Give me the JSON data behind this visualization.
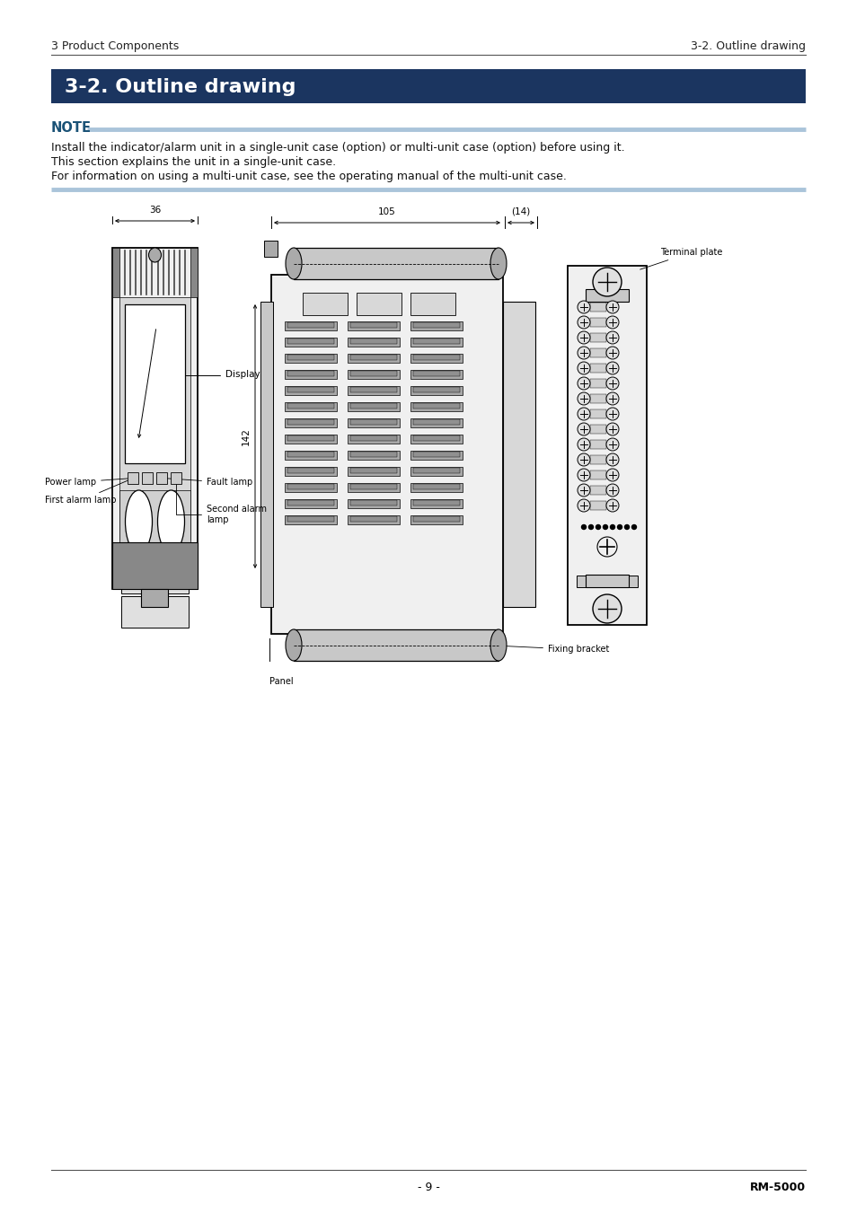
{
  "page_bg": "#ffffff",
  "header_line_color": "#555555",
  "header_left": "3 Product Components",
  "header_right": "3-2. Outline drawing",
  "header_fontsize": 9,
  "section_bg": "#1b3560",
  "section_title": "3-2. Outline drawing",
  "section_title_color": "#ffffff",
  "section_title_fontsize": 16,
  "note_label": "NOTE",
  "note_label_color": "#1a5276",
  "note_bar_color": "#aac4da",
  "note_text_lines": [
    "Install the indicator/alarm unit in a single-unit case (option) or multi-unit case (option) before using it.",
    "This section explains the unit in a single-unit case.",
    "For information on using a multi-unit case, see the operating manual of the multi-unit case."
  ],
  "note_fontsize": 9,
  "footer_page": "- 9 -",
  "footer_model": "RM-5000",
  "footer_fontsize": 9
}
